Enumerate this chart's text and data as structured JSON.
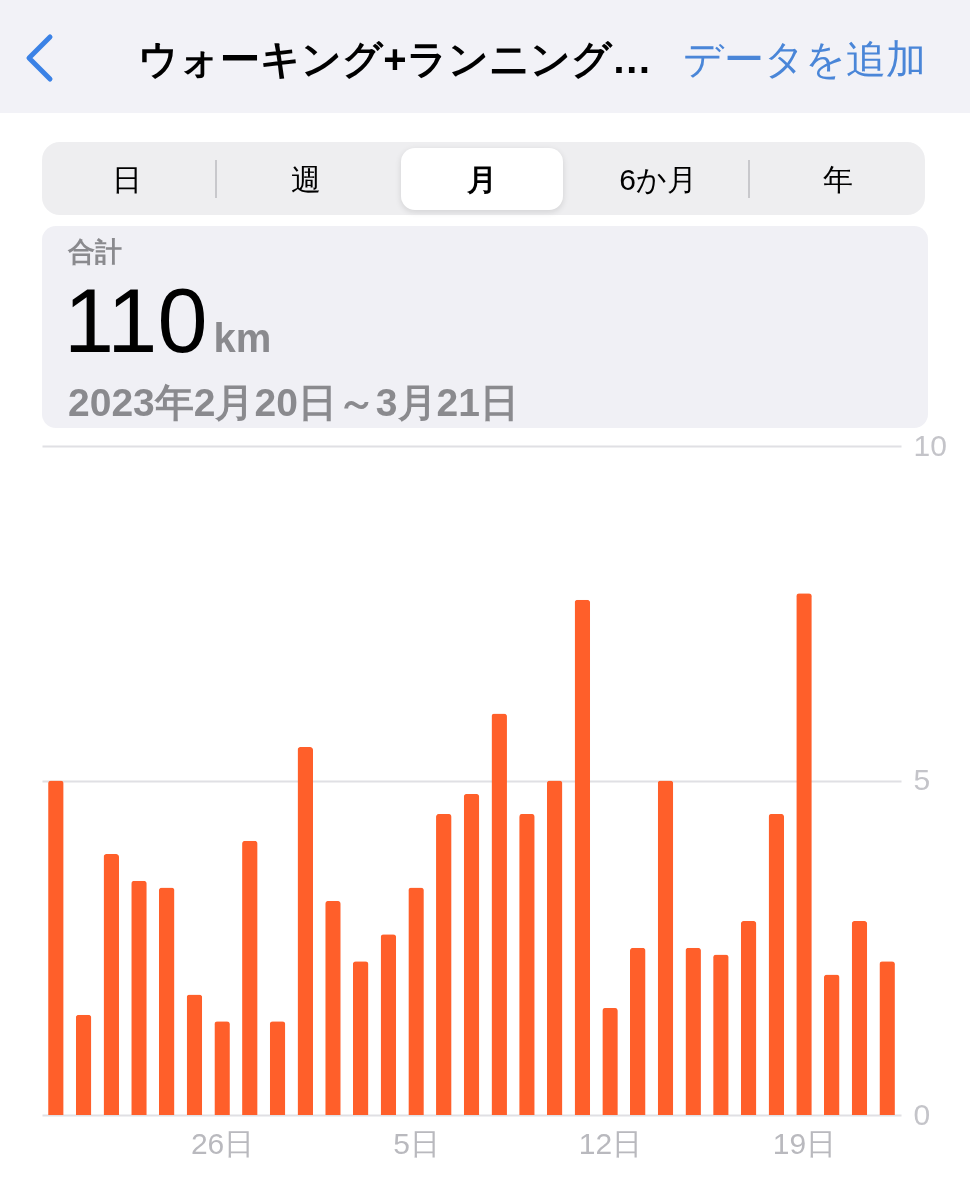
{
  "chart_data": {
    "type": "bar",
    "title": "ウォーキング+ランニング…",
    "subtitle": "2023年2月20日～3月21日",
    "annotations": [
      "データを追加",
      "日",
      "週",
      "月",
      "6か月",
      "年",
      "合計",
      "110",
      "km"
    ],
    "categories": [
      null,
      null,
      null,
      null,
      null,
      null,
      "26日",
      null,
      null,
      null,
      null,
      null,
      null,
      "5日",
      null,
      null,
      null,
      null,
      null,
      null,
      "12日",
      null,
      null,
      null,
      null,
      null,
      null,
      "19日",
      null,
      null,
      null
    ],
    "values": [
      5.0,
      1.5,
      3.9,
      3.5,
      3.4,
      1.8,
      1.4,
      4.1,
      1.4,
      5.5,
      3.2,
      2.3,
      2.7,
      3.4,
      4.5,
      4.8,
      6.0,
      4.5,
      5.0,
      7.7,
      1.6,
      2.5,
      5.0,
      2.5,
      2.4,
      2.9,
      4.5,
      7.8,
      2.1,
      2.9,
      2.3
    ],
    "color": "#ff5f2a",
    "ylim": [
      0,
      10
    ],
    "yticks": [
      0,
      5,
      10
    ],
    "grid": "y"
  }
}
